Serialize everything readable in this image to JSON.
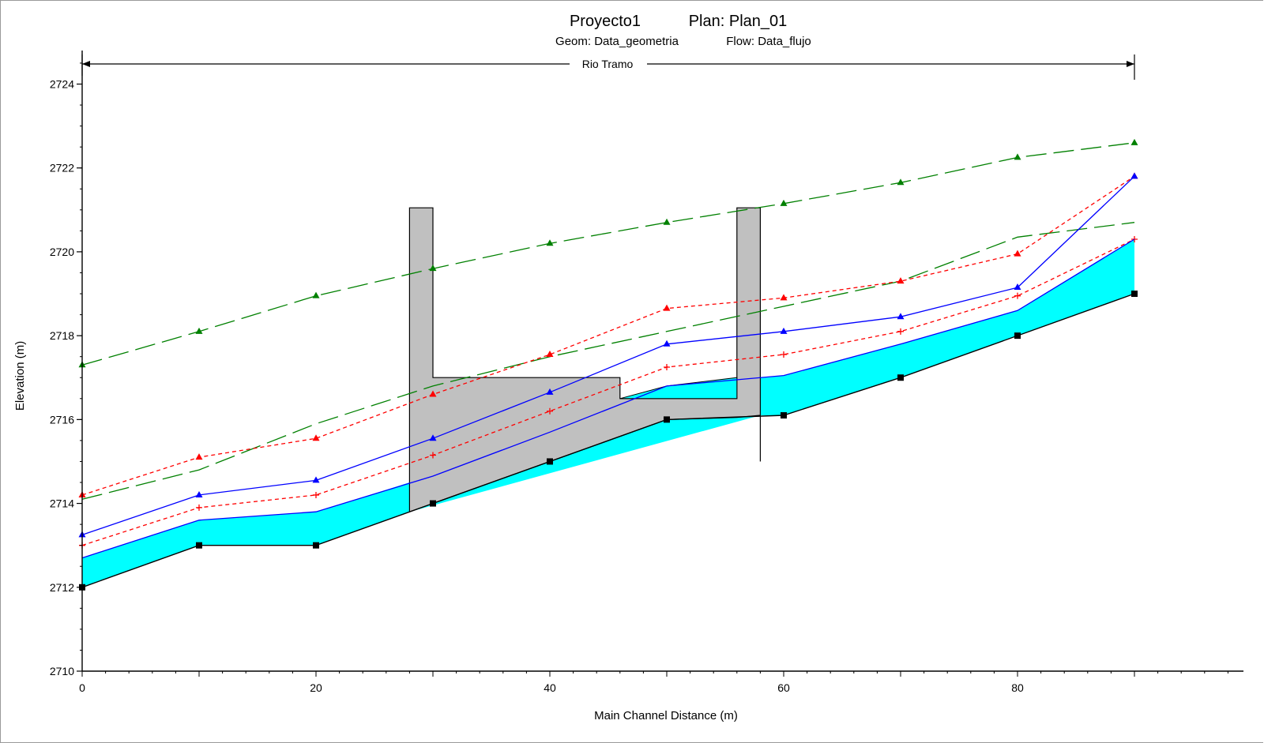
{
  "title": {
    "project": "Proyecto1",
    "plan": "Plan: Plan_01",
    "geom": "Geom: Data_geometria",
    "flow": "Flow: Data_flujo"
  },
  "reach_label": "Rio Tramo",
  "colors": {
    "ground": "#000000",
    "water": "#00ffff",
    "structure": "#c0c0c0",
    "wse": "#0000ff",
    "crit": "#ff0000",
    "egl": "#008000"
  },
  "chart_data": {
    "type": "line",
    "xlabel": "Main Channel Distance (m)",
    "ylabel": "Elevation (m)",
    "xlim": [
      0,
      100
    ],
    "ylim": [
      2710,
      2724.8
    ],
    "x_ticks": [
      0,
      20,
      40,
      60,
      80
    ],
    "y_ticks": [
      2710,
      2712,
      2714,
      2716,
      2718,
      2720,
      2722,
      2724
    ],
    "reach": {
      "name": "Rio Tramo",
      "x_start": 0,
      "x_end": 90,
      "elev": 2725.1
    },
    "ground": {
      "x": [
        0,
        10,
        20,
        30,
        40,
        50,
        60,
        70,
        80,
        90
      ],
      "y": [
        2712.0,
        2713.0,
        2713.0,
        2714.0,
        2715.0,
        2716.0,
        2716.1,
        2717.0,
        2718.0,
        2719.0
      ]
    },
    "ws_fill_top": {
      "x": [
        0,
        10,
        20,
        28,
        58,
        60,
        70,
        80,
        90
      ],
      "y": [
        2712.7,
        2713.6,
        2713.8,
        2714.5,
        2717.0,
        2717.05,
        2717.8,
        2718.6,
        2720.3
      ]
    },
    "ws_fill_bottom": {
      "x": [
        0,
        10,
        20,
        28,
        58,
        60,
        70,
        80,
        90
      ],
      "y": [
        2712.0,
        2713.0,
        2713.0,
        2713.8,
        2716.1,
        2716.1,
        2717.0,
        2718.0,
        2719.0
      ]
    },
    "structure": {
      "x": [
        28,
        28,
        30,
        30,
        46,
        46,
        50,
        56,
        56,
        58,
        58,
        56,
        50,
        40,
        30,
        28
      ],
      "y": [
        2713.8,
        2721.05,
        2721.05,
        2717.0,
        2717.0,
        2716.5,
        2716.5,
        2716.5,
        2721.05,
        2721.05,
        2716.1,
        2716.05,
        2716.0,
        2715.0,
        2714.0,
        2713.8
      ]
    },
    "structure_stem": {
      "x": 58,
      "y_top": 2716.1,
      "y_bottom": 2715.0
    },
    "water_in_structure": {
      "x": [
        46,
        50,
        56,
        56,
        46
      ],
      "y": [
        2716.5,
        2716.8,
        2717.0,
        2716.5,
        2716.5
      ]
    },
    "series": [
      {
        "kind": "egl-upper",
        "x": [
          0,
          10,
          20,
          30,
          40,
          50,
          60,
          70,
          80,
          90
        ],
        "y": [
          2717.3,
          2718.1,
          2718.95,
          2719.6,
          2720.2,
          2720.7,
          2721.15,
          2721.65,
          2722.25,
          2722.6
        ],
        "color": "#008000",
        "dash": "long",
        "marker": "triangle"
      },
      {
        "kind": "egl-lower",
        "x": [
          0,
          10,
          20,
          30,
          40,
          50,
          60,
          70,
          80,
          90
        ],
        "y": [
          2714.1,
          2714.8,
          2715.9,
          2716.8,
          2717.5,
          2718.1,
          2718.7,
          2719.3,
          2720.35,
          2720.7
        ],
        "color": "#008000",
        "dash": "long",
        "marker": "none"
      },
      {
        "kind": "crit-upper",
        "x": [
          0,
          10,
          20,
          30,
          40,
          50,
          60,
          70,
          80,
          90
        ],
        "y": [
          2714.2,
          2715.1,
          2715.55,
          2716.6,
          2717.55,
          2718.65,
          2718.9,
          2719.3,
          2719.95,
          2721.8
        ],
        "color": "#ff0000",
        "dash": "short",
        "marker": "triangle"
      },
      {
        "kind": "wse-upper",
        "x": [
          0,
          10,
          20,
          30,
          40,
          50,
          60,
          70,
          80,
          90
        ],
        "y": [
          2713.25,
          2714.2,
          2714.55,
          2715.55,
          2716.65,
          2717.8,
          2718.1,
          2718.45,
          2719.15,
          2721.8
        ],
        "color": "#0000ff",
        "dash": "solid",
        "marker": "triangle"
      },
      {
        "kind": "crit-lower",
        "x": [
          0,
          10,
          20,
          30,
          40,
          50,
          60,
          70,
          80,
          90
        ],
        "y": [
          2713.0,
          2713.9,
          2714.2,
          2715.15,
          2716.2,
          2717.25,
          2717.55,
          2718.1,
          2718.95,
          2720.3
        ],
        "color": "#ff0000",
        "dash": "short",
        "marker": "plus"
      },
      {
        "kind": "wse-lower",
        "x": [
          0,
          10,
          20,
          30,
          40,
          50,
          60,
          70,
          80,
          90
        ],
        "y": [
          2712.7,
          2713.6,
          2713.8,
          2714.65,
          2715.7,
          2716.8,
          2717.05,
          2717.8,
          2718.6,
          2720.3
        ],
        "color": "#0000ff",
        "dash": "solid",
        "marker": "none"
      }
    ]
  }
}
